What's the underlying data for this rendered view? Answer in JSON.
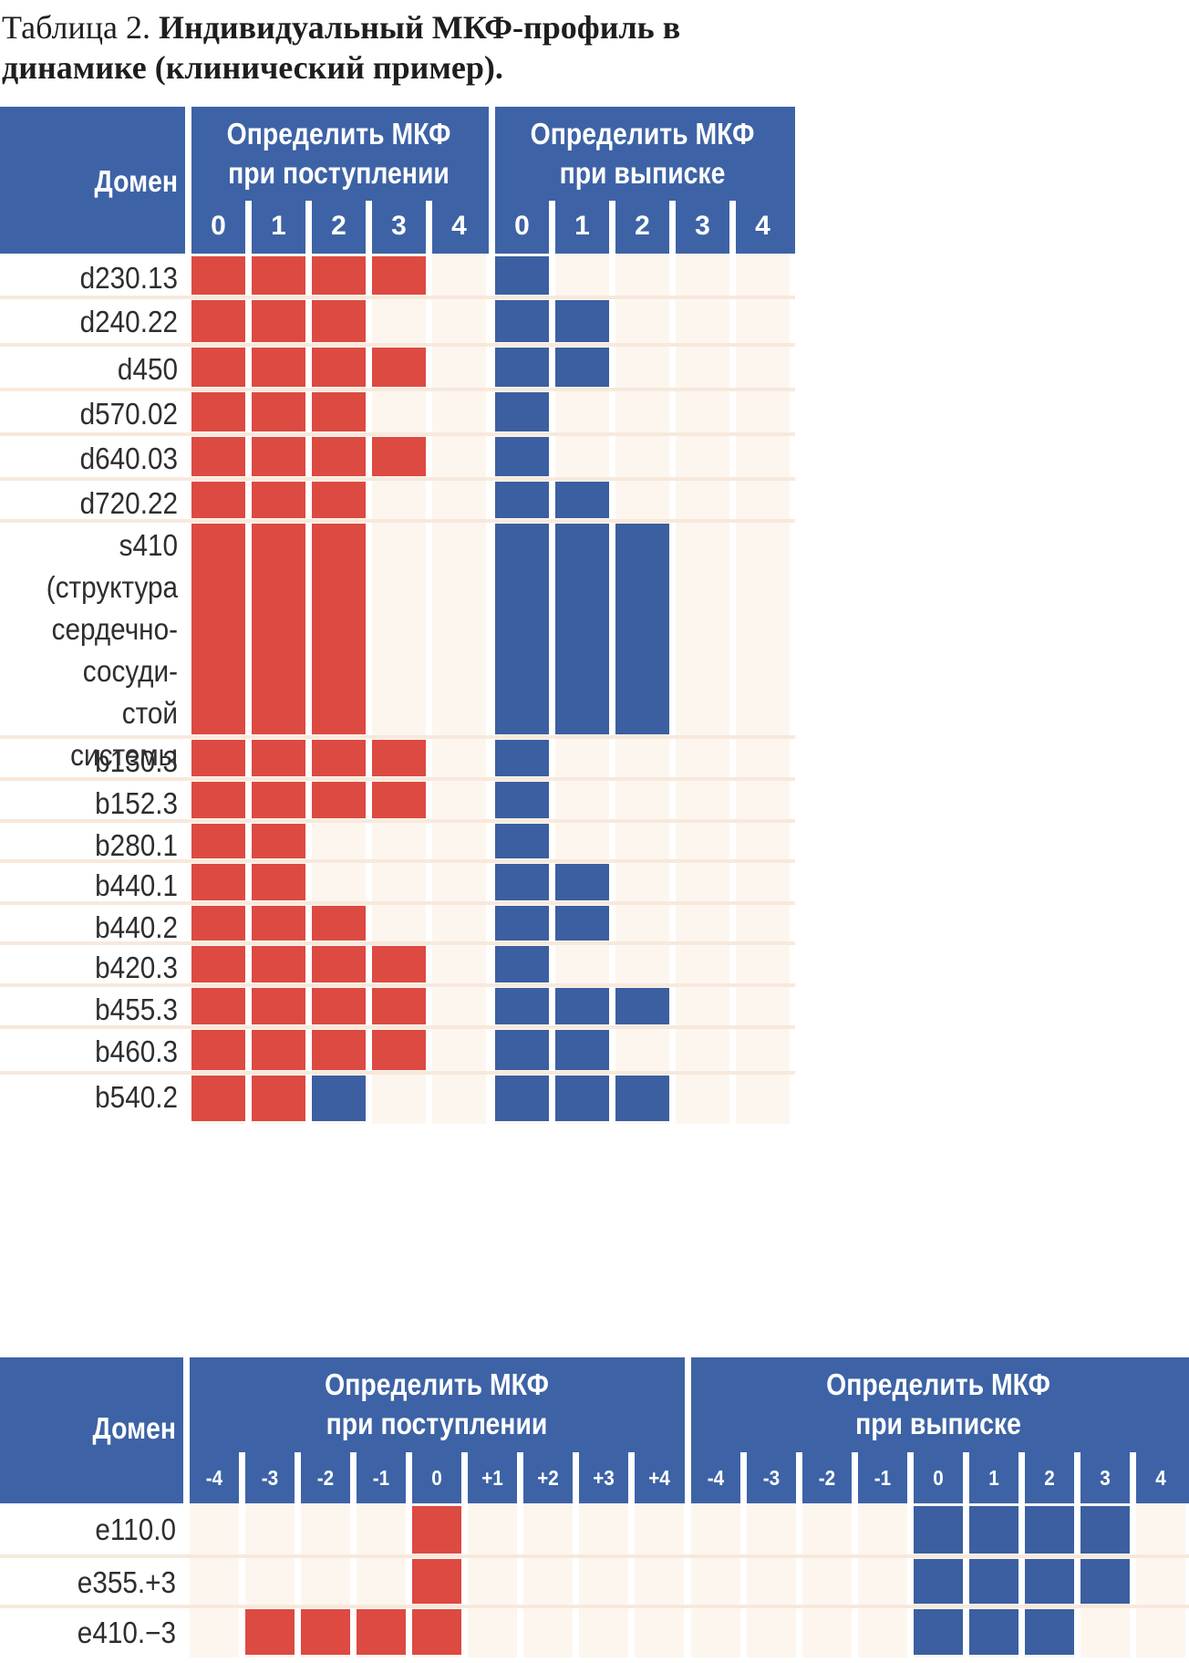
{
  "title": {
    "prefix": "Таблица 2. ",
    "main": "Индивидуальный МКФ-профиль в динамике (клинический пример)."
  },
  "colors": {
    "header": "#3d63a6",
    "admission": "#dc4a42",
    "discharge": "#3b5fa0",
    "empty": "#fdf6ef"
  },
  "table1": {
    "domain_header": "Домен",
    "admission_header": [
      "Определить МКФ",
      "при поступлении"
    ],
    "discharge_header": [
      "Определить МКФ",
      "при выписке"
    ],
    "admission_cols": [
      "0",
      "1",
      "2",
      "3",
      "4"
    ],
    "discharge_cols": [
      "0",
      "1",
      "2",
      "3",
      "4"
    ],
    "rows": [
      {
        "label": [
          "d230.13"
        ],
        "admission": [
          "r",
          "r",
          "r",
          "r",
          ""
        ],
        "discharge": [
          "b",
          "",
          "",
          "",
          ""
        ]
      },
      {
        "label": [
          "d240.22"
        ],
        "admission": [
          "r",
          "r",
          "r",
          "",
          ""
        ],
        "discharge": [
          "b",
          "b",
          "",
          "",
          ""
        ]
      },
      {
        "label": [
          "d450"
        ],
        "admission": [
          "r",
          "r",
          "r",
          "r",
          ""
        ],
        "discharge": [
          "b",
          "b",
          "",
          "",
          ""
        ]
      },
      {
        "label": [
          "d570.02"
        ],
        "admission": [
          "r",
          "r",
          "r",
          "",
          ""
        ],
        "discharge": [
          "b",
          "",
          "",
          "",
          ""
        ]
      },
      {
        "label": [
          "d640.03"
        ],
        "admission": [
          "r",
          "r",
          "r",
          "r",
          ""
        ],
        "discharge": [
          "b",
          "",
          "",
          "",
          ""
        ]
      },
      {
        "label": [
          "d720.22"
        ],
        "admission": [
          "r",
          "r",
          "r",
          "",
          ""
        ],
        "discharge": [
          "b",
          "b",
          "",
          "",
          ""
        ]
      },
      {
        "label": [
          "s410",
          "(структура",
          "сердечно-",
          "сосуди-",
          "стой",
          "системы"
        ],
        "admission": [
          "r",
          "r",
          "r",
          "",
          ""
        ],
        "discharge": [
          "b",
          "b",
          "b",
          "",
          ""
        ]
      },
      {
        "label": [
          "b130.3"
        ],
        "admission": [
          "r",
          "r",
          "r",
          "r",
          ""
        ],
        "discharge": [
          "b",
          "",
          "",
          "",
          ""
        ]
      },
      {
        "label": [
          "b152.3"
        ],
        "admission": [
          "r",
          "r",
          "r",
          "r",
          ""
        ],
        "discharge": [
          "b",
          "",
          "",
          "",
          ""
        ]
      },
      {
        "label": [
          "b280.1"
        ],
        "admission": [
          "r",
          "r",
          "",
          "",
          ""
        ],
        "discharge": [
          "b",
          "",
          "",
          "",
          ""
        ]
      },
      {
        "label": [
          "b440.1"
        ],
        "admission": [
          "r",
          "r",
          "",
          "",
          ""
        ],
        "discharge": [
          "b",
          "b",
          "",
          "",
          ""
        ]
      },
      {
        "label": [
          "b440.2"
        ],
        "admission": [
          "r",
          "r",
          "r",
          "",
          ""
        ],
        "discharge": [
          "b",
          "b",
          "",
          "",
          ""
        ]
      },
      {
        "label": [
          "b420.3"
        ],
        "admission": [
          "r",
          "r",
          "r",
          "r",
          ""
        ],
        "discharge": [
          "b",
          "",
          "",
          "",
          ""
        ]
      },
      {
        "label": [
          "b455.3"
        ],
        "admission": [
          "r",
          "r",
          "r",
          "r",
          ""
        ],
        "discharge": [
          "b",
          "b",
          "b",
          "",
          ""
        ]
      },
      {
        "label": [
          "b460.3"
        ],
        "admission": [
          "r",
          "r",
          "r",
          "r",
          ""
        ],
        "discharge": [
          "b",
          "b",
          "",
          "",
          ""
        ]
      },
      {
        "label": [
          "b540.2"
        ],
        "admission": [
          "r",
          "r",
          "b",
          "",
          ""
        ],
        "discharge": [
          "b",
          "b",
          "b",
          "",
          ""
        ]
      }
    ]
  },
  "table2": {
    "domain_header": "Домен",
    "admission_header": [
      "Определить МКФ",
      "при поступлении"
    ],
    "discharge_header": [
      "Определить МКФ",
      "при выписке"
    ],
    "admission_cols": [
      "-4",
      "-3",
      "-2",
      "-1",
      "0",
      "+1",
      "+2",
      "+3",
      "+4"
    ],
    "discharge_cols": [
      "-4",
      "-3",
      "-2",
      "-1",
      "0",
      "1",
      "2",
      "3",
      "4"
    ],
    "rows": [
      {
        "label": [
          "e110.0"
        ],
        "admission": [
          "",
          "",
          "",
          "",
          "r",
          "",
          "",
          "",
          ""
        ],
        "discharge": [
          "",
          "",
          "",
          "",
          "b",
          "b",
          "b",
          "b",
          ""
        ]
      },
      {
        "label": [
          "e355.+3"
        ],
        "admission": [
          "",
          "",
          "",
          "",
          "r",
          "",
          "",
          "",
          ""
        ],
        "discharge": [
          "",
          "",
          "",
          "",
          "b",
          "b",
          "b",
          "b",
          ""
        ]
      },
      {
        "label": [
          "e410.−3"
        ],
        "admission": [
          "",
          "r",
          "r",
          "r",
          "r",
          "",
          "",
          "",
          ""
        ],
        "discharge": [
          "",
          "",
          "",
          "",
          "b",
          "b",
          "b",
          "",
          ""
        ]
      }
    ]
  }
}
